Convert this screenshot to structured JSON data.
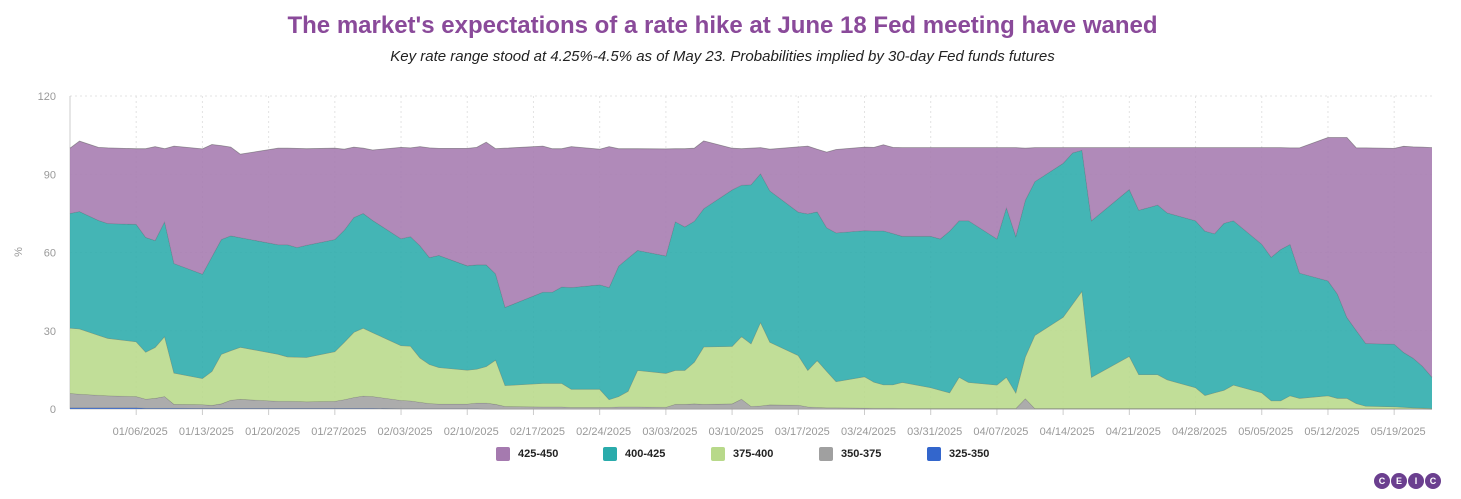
{
  "title": "The market's expectations of a rate hike at June 18 Fed meeting have waned",
  "subtitle": "Key rate range stood at 4.25%-4.5% as of May 23. Probabilities implied by 30-day Fed funds futures",
  "logo": [
    "C",
    "E",
    "I",
    "C"
  ],
  "chart_data": {
    "type": "area",
    "stacked": true,
    "ylabel": "%",
    "ylim": [
      0,
      120
    ],
    "yticks": [
      0,
      30,
      60,
      90,
      120
    ],
    "grid": true,
    "legend_position": "bottom",
    "x": [
      "12/30/2024",
      "12/31/2024",
      "01/02/2025",
      "01/03/2025",
      "01/06/2025",
      "01/07/2025",
      "01/08/2025",
      "01/09/2025",
      "01/10/2025",
      "01/13/2025",
      "01/14/2025",
      "01/15/2025",
      "01/16/2025",
      "01/17/2025",
      "01/21/2025",
      "01/22/2025",
      "01/23/2025",
      "01/24/2025",
      "01/27/2025",
      "01/28/2025",
      "01/29/2025",
      "01/30/2025",
      "01/31/2025",
      "02/03/2025",
      "02/04/2025",
      "02/05/2025",
      "02/06/2025",
      "02/07/2025",
      "02/10/2025",
      "02/11/2025",
      "02/12/2025",
      "02/13/2025",
      "02/14/2025",
      "02/18/2025",
      "02/19/2025",
      "02/20/2025",
      "02/21/2025",
      "02/24/2025",
      "02/25/2025",
      "02/26/2025",
      "02/27/2025",
      "02/28/2025",
      "03/03/2025",
      "03/04/2025",
      "03/05/2025",
      "03/06/2025",
      "03/07/2025",
      "03/10/2025",
      "03/11/2025",
      "03/12/2025",
      "03/13/2025",
      "03/14/2025",
      "03/17/2025",
      "03/18/2025",
      "03/19/2025",
      "03/20/2025",
      "03/21/2025",
      "03/24/2025",
      "03/25/2025",
      "03/26/2025",
      "03/27/2025",
      "03/28/2025",
      "03/31/2025",
      "04/01/2025",
      "04/02/2025",
      "04/03/2025",
      "04/04/2025",
      "04/07/2025",
      "04/08/2025",
      "04/09/2025",
      "04/10/2025",
      "04/11/2025",
      "04/14/2025",
      "04/15/2025",
      "04/16/2025",
      "04/17/2025",
      "04/21/2025",
      "04/22/2025",
      "04/23/2025",
      "04/24/2025",
      "04/25/2025",
      "04/28/2025",
      "04/29/2025",
      "04/30/2025",
      "05/01/2025",
      "05/02/2025",
      "05/05/2025",
      "05/06/2025",
      "05/07/2025",
      "05/08/2025",
      "05/09/2025",
      "05/12/2025",
      "05/13/2025",
      "05/14/2025",
      "05/15/2025",
      "05/16/2025",
      "05/19/2025",
      "05/20/2025",
      "05/21/2025",
      "05/22/2025",
      "05/23/2025"
    ],
    "xticks": [
      "01/06/2025",
      "01/13/2025",
      "01/20/2025",
      "01/27/2025",
      "02/03/2025",
      "02/10/2025",
      "02/17/2025",
      "02/24/2025",
      "03/03/2025",
      "03/10/2025",
      "03/17/2025",
      "03/24/2025",
      "03/31/2025",
      "04/07/2025",
      "04/14/2025",
      "04/21/2025",
      "04/28/2025",
      "05/05/2025",
      "05/12/2025",
      "05/19/2025"
    ],
    "xrange": [
      "12/30/2024",
      "05/23/2025"
    ],
    "series": [
      {
        "name": "325-350",
        "color": "#3366cc",
        "values": [
          0.5,
          0.5,
          0.5,
          0.5,
          0.5,
          0.3,
          0.3,
          0.3,
          0.3,
          0.2,
          0.2,
          0.2,
          0.2,
          0.2,
          0.2,
          0.2,
          0.2,
          0.2,
          0.2,
          0.2,
          0.2,
          0.2,
          0.2,
          0.1,
          0.1,
          0.1,
          0.1,
          0.1,
          0.1,
          0.1,
          0,
          0,
          0,
          0,
          0,
          0,
          0,
          0,
          0,
          0,
          0,
          0,
          0,
          0,
          0,
          0,
          0,
          0,
          0,
          0,
          0,
          0,
          0,
          0,
          0,
          0,
          0,
          0,
          0,
          0,
          0,
          0,
          0,
          0,
          0,
          0,
          0,
          0,
          0,
          0,
          0,
          0,
          0,
          0,
          0,
          0,
          0,
          0,
          0,
          0,
          0,
          0,
          0,
          0,
          0,
          0,
          0,
          0,
          0,
          0,
          0,
          0,
          0,
          0,
          0,
          0,
          0,
          0,
          0,
          0,
          0
        ]
      },
      {
        "name": "350-375",
        "color": "#a0a0a0",
        "values": [
          5.5,
          5.2,
          4.8,
          4.6,
          4.3,
          3.5,
          3.8,
          4.5,
          1.5,
          1.5,
          1.2,
          1.8,
          3.2,
          3.5,
          2.8,
          2.8,
          2.7,
          2.6,
          2.8,
          3.4,
          4.2,
          4.8,
          4.6,
          3.2,
          3,
          2.5,
          2,
          1.8,
          1.8,
          2.2,
          2.3,
          1.8,
          1,
          0.8,
          0.8,
          0.8,
          0.6,
          0.6,
          0.6,
          0.8,
          0.8,
          0.8,
          0.7,
          1.8,
          1.8,
          2,
          1.8,
          2,
          3.8,
          1,
          1.2,
          1.6,
          1.5,
          0.8,
          0.6,
          0.5,
          0.5,
          0.4,
          0.3,
          0.3,
          0.3,
          0.2,
          0.2,
          0.2,
          0.2,
          0.2,
          0.2,
          0.2,
          0.2,
          0.2,
          4,
          0.2,
          0.2,
          0.2,
          0.2,
          0.2,
          0.2,
          0.2,
          0.2,
          0.2,
          0.2,
          0.2,
          0.2,
          0.2,
          0.2,
          0.2,
          0.2,
          0.2,
          0.2,
          0.1,
          0.1,
          0.1,
          0.1,
          0.1,
          0.1,
          0.1,
          0.1,
          0.1,
          0.1,
          0.1,
          0
        ]
      },
      {
        "name": "375-400",
        "color": "#b8d98a",
        "values": [
          25,
          25,
          23,
          22,
          21,
          18,
          19.5,
          23,
          12,
          10,
          13,
          19,
          19,
          20,
          18,
          17,
          17,
          17,
          19,
          22,
          25,
          26,
          24.5,
          21,
          21,
          17,
          15,
          14,
          13,
          13,
          14,
          17,
          8,
          9,
          9,
          9,
          7,
          7,
          3,
          4,
          6,
          14,
          13,
          13,
          13,
          16,
          22,
          22,
          24,
          24,
          32,
          24,
          19,
          14,
          18,
          14,
          10,
          12,
          10,
          9,
          9,
          10,
          8,
          7,
          6,
          12,
          10,
          9,
          12,
          6,
          16,
          28,
          35,
          40,
          45,
          12,
          20,
          13,
          13,
          13,
          11,
          8,
          5,
          6,
          7,
          9,
          6,
          3,
          3,
          5,
          4,
          5,
          4,
          4,
          2,
          1,
          0.8,
          0.6,
          0.4,
          0.3,
          0.2
        ]
      },
      {
        "name": "400-425",
        "color": "#2aabab",
        "values": [
          44,
          45,
          44,
          44,
          45,
          44,
          41,
          44,
          42,
          40,
          44,
          44,
          44,
          42,
          42,
          43,
          42,
          43,
          43,
          43,
          44,
          44,
          43,
          41,
          42,
          43,
          41,
          43,
          40,
          40,
          39,
          33,
          30,
          35,
          35,
          37,
          39,
          40,
          43,
          50,
          51,
          46,
          45,
          57,
          55,
          54,
          53,
          60,
          58,
          61,
          57,
          58,
          55,
          60,
          57,
          55,
          57,
          56,
          58,
          59,
          58,
          56,
          58,
          58,
          62,
          60,
          62,
          56,
          65,
          60,
          60,
          59,
          59,
          58,
          54,
          60,
          64,
          63,
          64,
          65,
          64,
          64,
          63,
          61,
          64,
          63,
          57,
          55,
          58,
          58,
          48,
          44,
          40,
          31,
          28,
          24,
          24,
          21,
          19,
          16,
          12
        ]
      },
      {
        "name": "425-450",
        "color": "#a57aaf",
        "values": [
          25,
          27,
          28,
          29,
          29,
          34,
          36,
          28,
          45,
          48,
          43,
          36,
          34,
          32,
          37,
          37,
          38,
          37,
          35,
          31,
          27,
          25,
          27,
          35,
          34,
          38,
          42,
          41,
          45,
          45,
          47,
          48,
          61,
          56,
          55,
          53,
          54,
          52,
          54,
          45,
          42,
          39,
          41,
          28,
          30,
          28,
          26,
          16,
          14,
          14,
          10,
          16,
          25,
          26,
          24,
          29,
          32,
          32,
          32,
          33,
          33,
          34,
          34,
          35,
          32,
          28,
          28,
          35,
          23,
          34,
          20,
          13,
          6,
          2,
          1,
          28,
          16,
          24,
          23,
          22,
          25,
          28,
          32,
          33,
          29,
          28,
          37,
          42,
          39,
          37,
          48,
          55,
          60,
          69,
          70,
          75,
          75,
          79,
          81,
          84,
          88
        ]
      }
    ]
  }
}
